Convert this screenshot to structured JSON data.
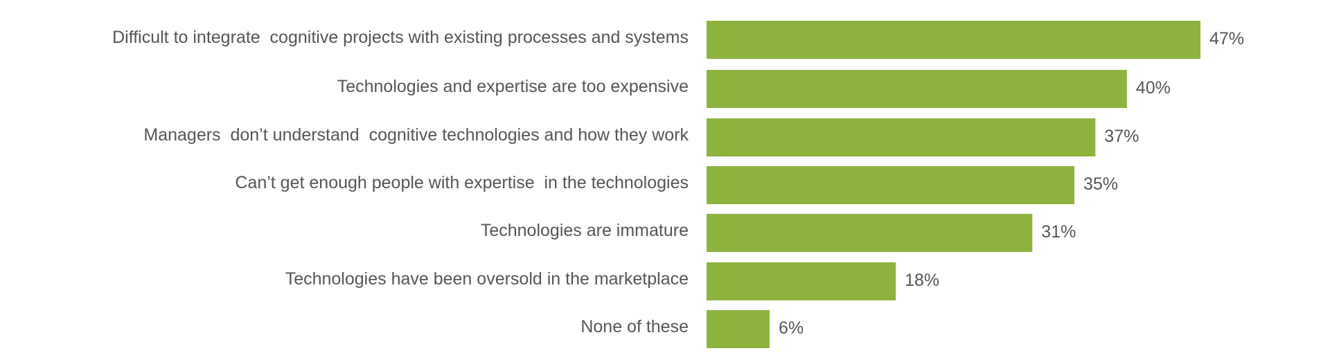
{
  "chart_data": {
    "type": "bar",
    "orientation": "horizontal",
    "categories": [
      "Difficult to integrate  cognitive projects with existing processes and systems",
      "Technologies and expertise are too expensive",
      "Managers  don’t understand  cognitive technologies and how they work",
      "Can’t get enough people with expertise  in the technologies",
      "Technologies are immature",
      "Technologies have been oversold in the marketplace",
      "None of these"
    ],
    "values": [
      47,
      40,
      37,
      35,
      31,
      18,
      6
    ],
    "value_labels": [
      "47%",
      "40%",
      "37%",
      "35%",
      "31%",
      "18%",
      "6%"
    ],
    "unit": "%",
    "bar_color": "#8db33f",
    "text_color": "#555555",
    "title": "",
    "xlabel": "",
    "ylabel": "",
    "xlim": [
      0,
      47
    ],
    "grid": false,
    "legend": "none"
  }
}
